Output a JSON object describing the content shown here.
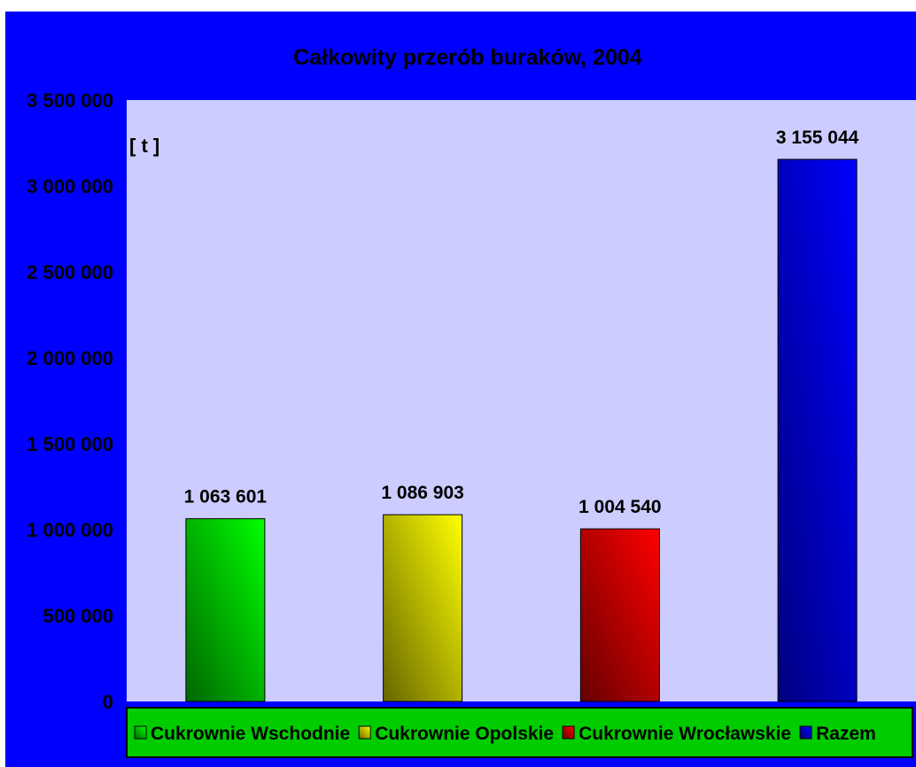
{
  "chart_data": {
    "type": "bar",
    "title": "Całkowity przerób buraków, 2004",
    "unit_label": "[ t ]",
    "ylim": [
      0,
      3500000
    ],
    "y_ticks": [
      0,
      500000,
      1000000,
      1500000,
      2000000,
      2500000,
      3000000,
      3500000
    ],
    "y_tick_labels": [
      "0",
      "500 000",
      "1 000 000",
      "1 500 000",
      "2 000 000",
      "2 500 000",
      "3 000 000",
      "3 500 000"
    ],
    "grid": false,
    "legend_position": "bottom",
    "series": [
      {
        "name": "Cukrownie Wschodnie",
        "value": 1063601,
        "label": "1 063 601",
        "color": "#00ff00",
        "dark": "#006600"
      },
      {
        "name": "Cukrownie Opolskie",
        "value": 1086903,
        "label": "1 086 903",
        "color": "#ffff00",
        "dark": "#666600"
      },
      {
        "name": "Cukrownie Wrocławskie",
        "value": 1004540,
        "label": "1 004 540",
        "color": "#ff0000",
        "dark": "#660000"
      },
      {
        "name": "Razem",
        "value": 3155044,
        "label": "3 155 044",
        "color": "#0000ff",
        "dark": "#000080"
      }
    ]
  },
  "colors": {
    "background": "#0000ff",
    "plot_area": "#ccccff",
    "legend_background": "#00cc00"
  }
}
